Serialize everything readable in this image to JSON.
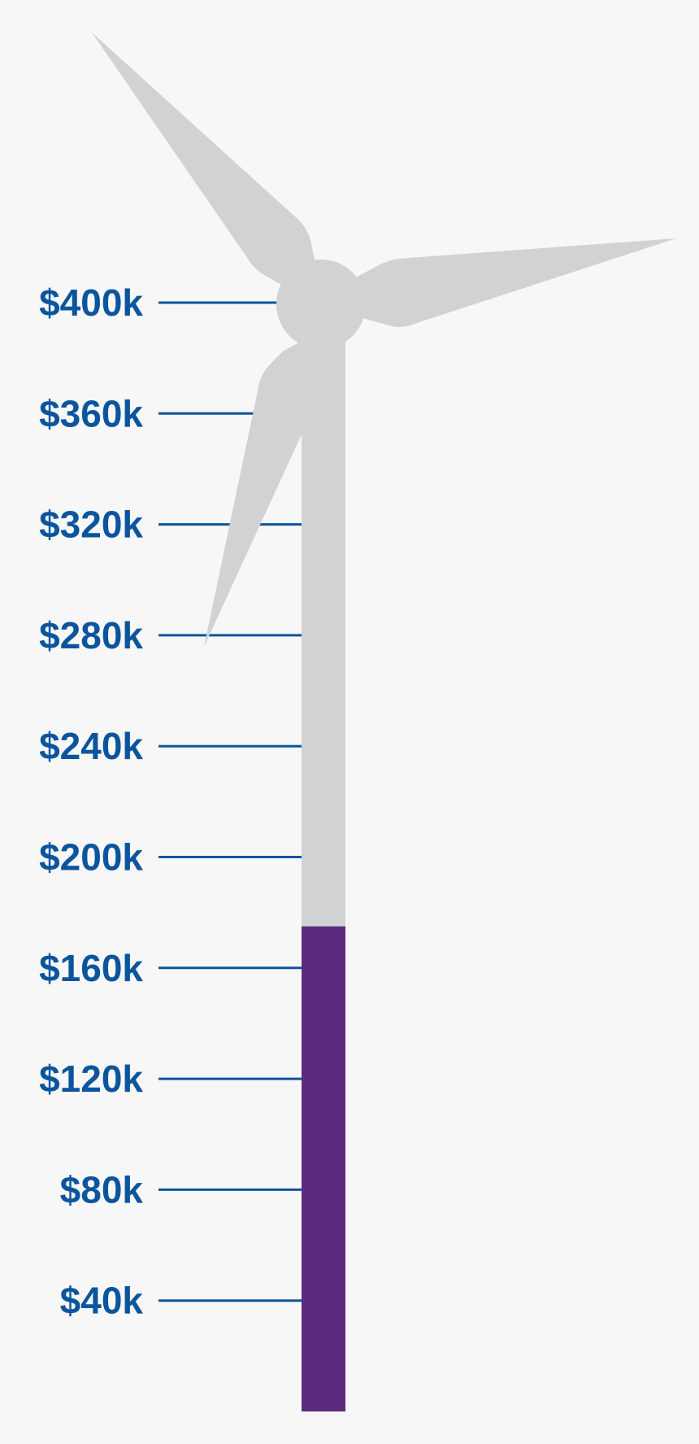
{
  "chart_data": {
    "type": "bar",
    "title": "",
    "ylabel": "",
    "xlabel": "",
    "ylim": [
      0,
      400000
    ],
    "tick_values": [
      40000,
      80000,
      120000,
      160000,
      200000,
      240000,
      280000,
      320000,
      360000,
      400000
    ],
    "tick_labels": [
      "$40k",
      "$80k",
      "$120k",
      "$160k",
      "$200k",
      "$240k",
      "$280k",
      "$320k",
      "$360k",
      "$400k"
    ],
    "values": [
      175000
    ],
    "grid": false,
    "legend": "none"
  },
  "colors": {
    "fill": "#5e2a7e",
    "turbine": "#d1d2d4",
    "ticks": "#0b559e",
    "background": "#f7f7f7"
  }
}
